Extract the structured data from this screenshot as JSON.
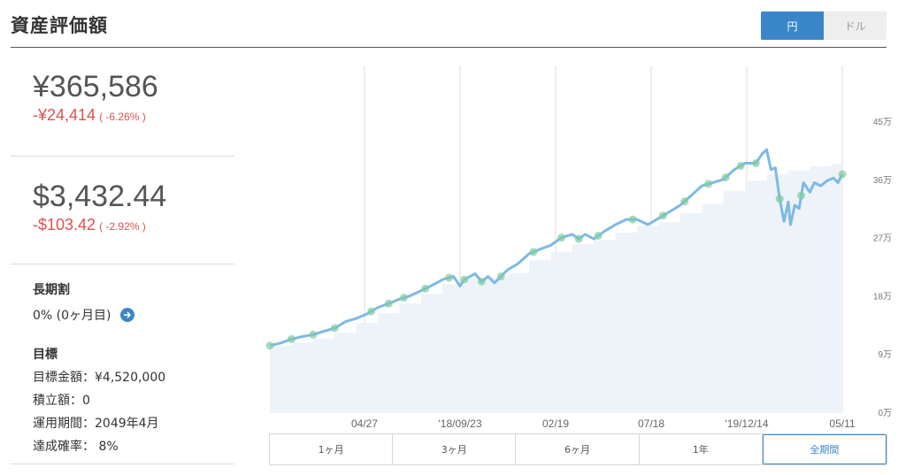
{
  "header": {
    "title": "資産評価額"
  },
  "currency_toggle": {
    "yen": "円",
    "usd": "ドル",
    "selected": "円",
    "accent": "#3b86c8"
  },
  "summary": {
    "jpy": {
      "value": "¥365,586",
      "change": "-¥24,414",
      "change_pct": "( -6.26% )"
    },
    "usd": {
      "value": "$3,432.44",
      "change": "-$103.42",
      "change_pct": "( -2.92% )"
    },
    "negative_color": "#d9534f"
  },
  "long_term": {
    "label": "長期割",
    "value": "0% (0ヶ月目)",
    "link_icon": "arrow-right-icon"
  },
  "goal": {
    "label": "目標",
    "amount": "目標金額：¥4,520,000",
    "contribution": "積立額：0",
    "period": "運用期間：2049年4月",
    "probability": "達成確率： 8%"
  },
  "ranges": {
    "items": [
      "1ヶ月",
      "3ヶ月",
      "6ヶ月",
      "1年",
      "全期間"
    ],
    "selected": "全期間"
  },
  "chart_data": {
    "type": "line",
    "title": "",
    "xlabel": "",
    "ylabel": "",
    "x_ticks": [
      "04/27",
      "'18/09/23",
      "02/19",
      "07/18",
      "'19/12/14",
      "05/11"
    ],
    "y_ticks": [
      "0万",
      "9万",
      "18万",
      "27万",
      "36万",
      "45万"
    ],
    "ylim": [
      0,
      45
    ],
    "y_unit": "万円",
    "grid": "vertical",
    "series": [
      {
        "role": "valuation",
        "color": "#7db9e8",
        "points": [
          [
            0,
            10.3
          ],
          [
            0.5,
            10.7
          ],
          [
            1,
            11.3
          ],
          [
            1.5,
            11.7
          ],
          [
            2,
            12.0
          ],
          [
            2.5,
            12.5
          ],
          [
            3,
            13.0
          ],
          [
            3.5,
            14.0
          ],
          [
            4,
            14.5
          ],
          [
            4.5,
            15.2
          ],
          [
            5,
            16.2
          ],
          [
            5.5,
            16.8
          ],
          [
            6,
            17.5
          ],
          [
            6.5,
            18.0
          ],
          [
            7,
            18.8
          ],
          [
            7.5,
            19.6
          ],
          [
            8,
            20.5
          ],
          [
            8.5,
            21.0
          ],
          [
            8.8,
            19.5
          ],
          [
            9,
            20.5
          ],
          [
            9.5,
            21.4
          ],
          [
            9.8,
            20.2
          ],
          [
            10.1,
            21.0
          ],
          [
            10.4,
            20.0
          ],
          [
            10.7,
            21.0
          ],
          [
            11,
            22.0
          ],
          [
            11.5,
            23.0
          ],
          [
            12,
            24.5
          ],
          [
            12.5,
            25.2
          ],
          [
            13,
            25.8
          ],
          [
            13.5,
            27.0
          ],
          [
            14,
            27.5
          ],
          [
            14.3,
            26.8
          ],
          [
            14.6,
            27.5
          ],
          [
            15,
            26.8
          ],
          [
            15.5,
            28.0
          ],
          [
            16,
            29.0
          ],
          [
            16.5,
            29.8
          ],
          [
            17,
            29.8
          ],
          [
            17.5,
            29.0
          ],
          [
            18,
            30.0
          ],
          [
            18.5,
            31.0
          ],
          [
            19,
            32.0
          ],
          [
            19.5,
            33.5
          ],
          [
            20,
            35.0
          ],
          [
            20.5,
            35.5
          ],
          [
            21,
            36.0
          ],
          [
            21.5,
            37.5
          ],
          [
            22,
            38.5
          ],
          [
            22.5,
            38.5
          ],
          [
            22.8,
            40.0
          ],
          [
            23.0,
            40.6
          ],
          [
            23.2,
            37.5
          ],
          [
            23.4,
            37.8
          ],
          [
            23.6,
            33.0
          ],
          [
            23.8,
            29.5
          ],
          [
            24.0,
            32.5
          ],
          [
            24.1,
            29.0
          ],
          [
            24.3,
            32.0
          ],
          [
            24.5,
            31.5
          ],
          [
            24.7,
            35.5
          ],
          [
            25.0,
            34.0
          ],
          [
            25.2,
            35.5
          ],
          [
            25.5,
            35.0
          ],
          [
            25.8,
            35.8
          ],
          [
            26.1,
            36.2
          ],
          [
            26.3,
            35.5
          ],
          [
            26.5,
            36.8
          ]
        ]
      },
      {
        "role": "contributions",
        "color": "#eef3fa",
        "points": [
          [
            0,
            10.3
          ],
          [
            1,
            10.8
          ],
          [
            2,
            11.4
          ],
          [
            3,
            12.3
          ],
          [
            4,
            13.8
          ],
          [
            5,
            15.3
          ],
          [
            6,
            16.8
          ],
          [
            7,
            18.3
          ],
          [
            8,
            19.8
          ],
          [
            9,
            20.6
          ],
          [
            10,
            20.8
          ],
          [
            11,
            21.5
          ],
          [
            12,
            23.5
          ],
          [
            13,
            24.8
          ],
          [
            14,
            26.0
          ],
          [
            15,
            26.6
          ],
          [
            16,
            27.8
          ],
          [
            17,
            28.8
          ],
          [
            18,
            29.4
          ],
          [
            19,
            30.8
          ],
          [
            20,
            32.2
          ],
          [
            21,
            34.2
          ],
          [
            22,
            35.8
          ],
          [
            22.5,
            35.8
          ],
          [
            23,
            36.8
          ],
          [
            24,
            37.4
          ],
          [
            25,
            38.0
          ],
          [
            26,
            38.4
          ],
          [
            26.5,
            38.4
          ]
        ]
      }
    ],
    "markers_color": "#7dcca0",
    "marker_x": [
      0,
      1,
      2,
      3,
      4.7,
      5.5,
      6.2,
      7.2,
      8.3,
      9.0,
      9.8,
      10.7,
      12.2,
      13.5,
      14.3,
      15.2,
      16.8,
      18.2,
      19.2,
      20.3,
      21.1,
      21.8,
      22.5,
      23.6,
      24.6,
      26.5
    ],
    "x_range": [
      0,
      26.5
    ]
  }
}
